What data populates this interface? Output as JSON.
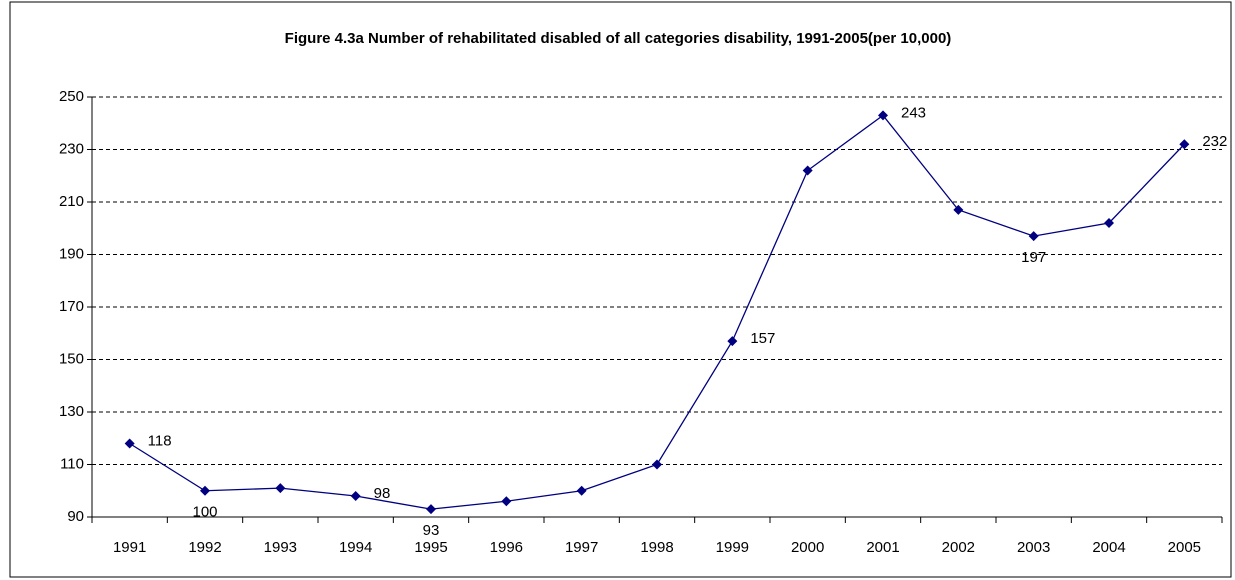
{
  "chart_data": {
    "type": "line",
    "title": "Figure 4.3a Number of rehabilitated disabled of  all categories disability, 1991-2005(per 10,000)",
    "categories": [
      "1991",
      "1992",
      "1993",
      "1994",
      "1995",
      "1996",
      "1997",
      "1998",
      "1999",
      "2000",
      "2001",
      "2002",
      "2003",
      "2004",
      "2005"
    ],
    "series": [
      {
        "color": "#000080",
        "values": [
          118,
          100,
          101,
          98,
          93,
          96,
          100,
          110,
          157,
          222,
          243,
          207,
          197,
          202,
          232
        ],
        "value_labels": [
          "118",
          "100",
          null,
          "98",
          "93",
          null,
          null,
          null,
          "157",
          null,
          "243",
          null,
          "197",
          null,
          "232"
        ]
      }
    ],
    "ylim": [
      90,
      250
    ],
    "yticks": [
      90,
      110,
      130,
      150,
      170,
      190,
      210,
      230,
      250
    ],
    "grid": true
  }
}
